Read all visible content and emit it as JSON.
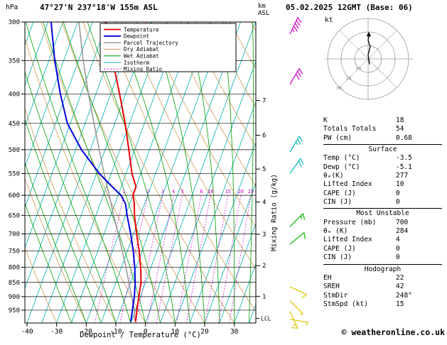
{
  "header": {
    "location": "47°27'N 237°18'W 155m ASL",
    "datetime": "05.02.2025 12GMT (Base: 06)"
  },
  "units": {
    "pressure": "hPa",
    "km": "km",
    "asl": "ASL",
    "kt": "kt"
  },
  "axis": {
    "x_label": "Dewpoint / Temperature (°C)",
    "mixing_axis_label": "Mixing Ratio (g/kg)",
    "pressure_ticks": [
      300,
      350,
      400,
      450,
      500,
      550,
      600,
      650,
      700,
      750,
      800,
      850,
      900,
      950
    ],
    "temp_ticks": [
      -40,
      -30,
      -20,
      -10,
      0,
      10,
      20,
      30
    ],
    "km_ticks": [
      1,
      2,
      3,
      4,
      5,
      6,
      7
    ],
    "lcl_label": "LCL",
    "lcl_pressure": 982
  },
  "legend": [
    {
      "label": "Temperature",
      "color": "#ee0000",
      "width": 1.8
    },
    {
      "label": "Dewpoint",
      "color": "#0000dd",
      "width": 1.8
    },
    {
      "label": "Parcel Trajectory",
      "color": "#9a9a9a",
      "width": 1.5
    },
    {
      "label": "Dry Adiabat",
      "color": "#cf9a52",
      "width": 1
    },
    {
      "label": "Wet Adiabat",
      "color": "#00a000",
      "width": 1
    },
    {
      "label": "Isotherm",
      "color": "#00b0b0",
      "width": 1
    },
    {
      "label": "Mixing Ratio",
      "color": "#cc00cc",
      "width": 1,
      "dash": "2 2.5"
    }
  ],
  "chart_data": {
    "type": "line",
    "title": "Skew-T log-P sounding",
    "x_axis": {
      "label": "Dewpoint / Temperature (°C)",
      "ticks": [
        -40,
        -30,
        -20,
        -10,
        0,
        10,
        20,
        30
      ]
    },
    "y_axis": {
      "label": "hPa",
      "scale": "log",
      "range": [
        300,
        1000
      ],
      "ticks": [
        300,
        350,
        400,
        450,
        500,
        550,
        600,
        650,
        700,
        750,
        800,
        850,
        900,
        950
      ]
    },
    "series": [
      {
        "name": "Temperature",
        "color": "#ee0000",
        "width": 2,
        "points": [
          [
            995,
            -3.5
          ],
          [
            950,
            -4.5
          ],
          [
            925,
            -5
          ],
          [
            900,
            -5.5
          ],
          [
            850,
            -6.5
          ],
          [
            800,
            -8.5
          ],
          [
            750,
            -11
          ],
          [
            700,
            -14
          ],
          [
            650,
            -17
          ],
          [
            620,
            -18.5
          ],
          [
            600,
            -20
          ],
          [
            580,
            -20
          ],
          [
            550,
            -23
          ],
          [
            500,
            -27
          ],
          [
            450,
            -31.5
          ],
          [
            400,
            -37
          ],
          [
            350,
            -43.5
          ],
          [
            300,
            -50.5
          ]
        ]
      },
      {
        "name": "Dewpoint",
        "color": "#0000dd",
        "width": 2,
        "points": [
          [
            995,
            -5.1
          ],
          [
            950,
            -6
          ],
          [
            925,
            -6.5
          ],
          [
            900,
            -7
          ],
          [
            850,
            -8.5
          ],
          [
            800,
            -10.5
          ],
          [
            750,
            -13
          ],
          [
            700,
            -16
          ],
          [
            650,
            -19.5
          ],
          [
            620,
            -21.5
          ],
          [
            600,
            -24
          ],
          [
            580,
            -28
          ],
          [
            550,
            -34
          ],
          [
            500,
            -43
          ],
          [
            450,
            -51
          ],
          [
            400,
            -57
          ],
          [
            350,
            -63
          ],
          [
            300,
            -69
          ]
        ]
      },
      {
        "name": "Parcel Trajectory",
        "color": "#9a9a9a",
        "width": 1.6,
        "points": [
          [
            995,
            -3.5
          ],
          [
            975,
            -4.6
          ],
          [
            950,
            -5.3
          ],
          [
            900,
            -7.9
          ],
          [
            850,
            -10.6
          ],
          [
            800,
            -13.5
          ],
          [
            750,
            -16.7
          ],
          [
            700,
            -20.2
          ],
          [
            650,
            -24
          ],
          [
            600,
            -28
          ],
          [
            550,
            -32.4
          ],
          [
            500,
            -37
          ],
          [
            450,
            -42
          ],
          [
            400,
            -47.5
          ],
          [
            350,
            -53.4
          ],
          [
            300,
            -59.6
          ]
        ]
      }
    ],
    "background": {
      "isotherms": {
        "color": "#00b0b0",
        "min": -110,
        "max": 35,
        "step": 5
      },
      "dry_adiabats": {
        "color": "#cf9a52",
        "min": -30,
        "max": 150,
        "step": 10
      },
      "wet_adiabats": {
        "color": "#00a000",
        "min": -25,
        "max": 35,
        "step": 5
      },
      "mixing_ratio": {
        "color": "#cc00cc",
        "values": [
          1,
          2,
          3,
          4,
          5,
          8,
          10,
          15,
          20,
          25
        ]
      }
    },
    "wind_barbs": [
      {
        "pressure": 315,
        "color": "#cc00cc",
        "angle": 25,
        "full": 4,
        "half": 1
      },
      {
        "pressure": 385,
        "color": "#cc00cc",
        "angle": 30,
        "full": 3,
        "half": 0
      },
      {
        "pressure": 505,
        "color": "#00b8b8",
        "angle": 30,
        "full": 2,
        "half": 1
      },
      {
        "pressure": 550,
        "color": "#00b8b8",
        "angle": 35,
        "full": 2,
        "half": 0
      },
      {
        "pressure": 680,
        "color": "#00b400",
        "angle": 45,
        "full": 1,
        "half": 1
      },
      {
        "pressure": 730,
        "color": "#00b400",
        "angle": 50,
        "full": 1,
        "half": 0
      },
      {
        "pressure": 865,
        "color": "#d8c800",
        "angle": 115,
        "full": 1,
        "half": 0
      },
      {
        "pressure": 915,
        "color": "#d8c800",
        "angle": 135,
        "full": 0,
        "half": 1
      },
      {
        "pressure": 955,
        "color": "#d8c800",
        "angle": 155,
        "full": 1,
        "half": 1
      },
      {
        "pressure": 985,
        "color": "#d8c800",
        "angle": 100,
        "full": 0,
        "half": 1
      }
    ]
  },
  "hodograph": {
    "unit": "kt",
    "rings": [
      10,
      20,
      30
    ],
    "trace_kt": [
      [
        1,
        -4
      ],
      [
        0,
        3
      ],
      [
        1.5,
        9
      ],
      [
        0,
        14
      ],
      [
        0.5,
        17
      ]
    ]
  },
  "panel": {
    "top_rows": [
      [
        "K",
        "18"
      ],
      [
        "Totals Totals",
        "54"
      ],
      [
        "PW (cm)",
        "0.68"
      ]
    ],
    "sections": [
      {
        "title": "Surface",
        "rows": [
          [
            "Temp (°C)",
            "-3.5"
          ],
          [
            "Dewp (°C)",
            "-5.1"
          ],
          [
            "θₑ(K)",
            "277"
          ],
          [
            "Lifted Index",
            "10"
          ],
          [
            "CAPE (J)",
            "0"
          ],
          [
            "CIN (J)",
            "0"
          ]
        ]
      },
      {
        "title": "Most Unstable",
        "rows": [
          [
            "Pressure (mb)",
            "700"
          ],
          [
            "θₑ (K)",
            "284"
          ],
          [
            "Lifted Index",
            "4"
          ],
          [
            "CAPE (J)",
            "0"
          ],
          [
            "CIN (J)",
            "0"
          ]
        ]
      },
      {
        "title": "Hodograph",
        "rows": [
          [
            "EH",
            "22"
          ],
          [
            "SREH",
            "42"
          ],
          [
            "StmDir",
            "248°"
          ],
          [
            "StmSpd (kt)",
            "15"
          ]
        ]
      }
    ]
  },
  "footer": {
    "copyright": "© weatheronline.co.uk"
  }
}
